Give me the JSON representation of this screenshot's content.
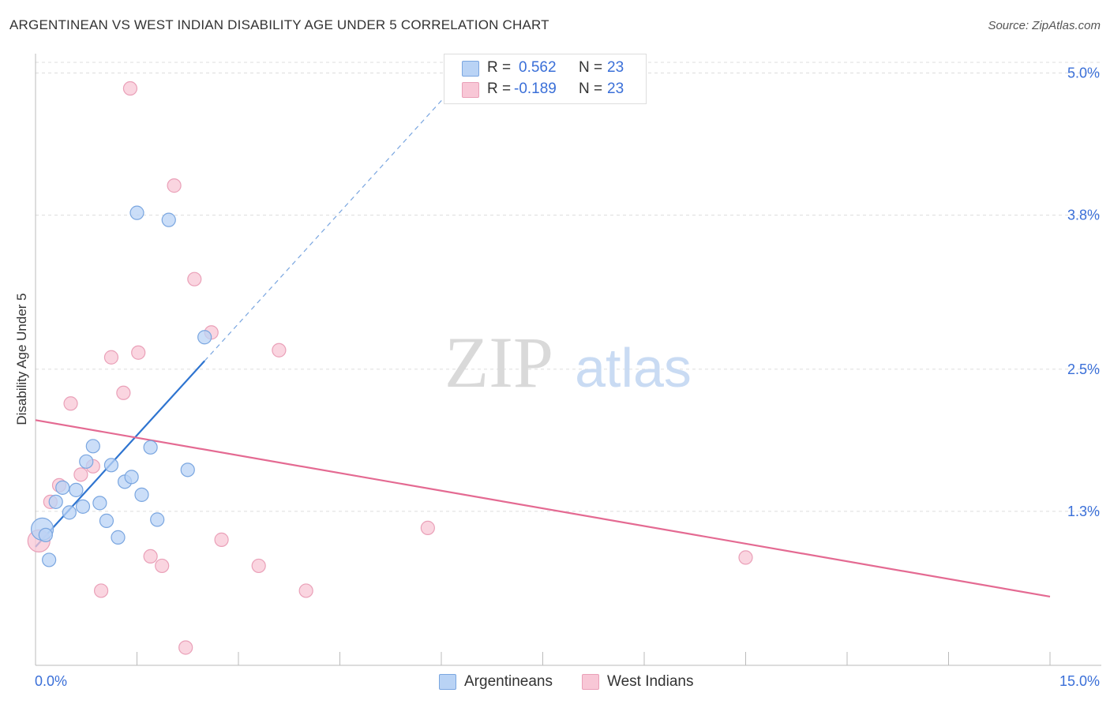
{
  "title": "ARGENTINEAN VS WEST INDIAN DISABILITY AGE UNDER 5 CORRELATION CHART",
  "source": "Source: ZipAtlas.com",
  "watermark": {
    "zip": "ZIP",
    "atlas": "atlas"
  },
  "colors": {
    "blue_fill": "#b9d3f5",
    "blue_stroke": "#7aa6e0",
    "blue_line": "#2e74d0",
    "pink_fill": "#f8c7d6",
    "pink_stroke": "#eaa0b8",
    "pink_line": "#e46a92",
    "value_text": "#3a6fd8",
    "grid": "#dddddd"
  },
  "legend": {
    "rows": [
      {
        "r_label": "R =",
        "r_value": "0.562",
        "n_label": "N =",
        "n_value": "23"
      },
      {
        "r_label": "R =",
        "r_value": "-0.189",
        "n_label": "N =",
        "n_value": "23"
      }
    ]
  },
  "bottom_legend": [
    "Argentineans",
    "West Indians"
  ],
  "chart_data": {
    "type": "scatter",
    "title": "ARGENTINEAN VS WEST INDIAN DISABILITY AGE UNDER 5 CORRELATION CHART",
    "xlabel": "",
    "ylabel": "Disability Age Under 5",
    "xlim": [
      0,
      15
    ],
    "ylim": [
      0,
      5.15
    ],
    "x_tick_labels": [
      "0.0%",
      "15.0%"
    ],
    "y_ticks": [
      1.3,
      2.5,
      3.8,
      5.0
    ],
    "y_tick_labels": [
      "1.3%",
      "2.5%",
      "3.8%",
      "5.0%"
    ],
    "grid": "horizontal dashed",
    "series": [
      {
        "name": "Argentineans",
        "r": 0.562,
        "n": 23,
        "points": [
          {
            "x": 0.1,
            "y": 1.15,
            "size": "large"
          },
          {
            "x": 0.2,
            "y": 0.89
          },
          {
            "x": 0.3,
            "y": 1.38
          },
          {
            "x": 0.4,
            "y": 1.5
          },
          {
            "x": 0.5,
            "y": 1.29
          },
          {
            "x": 0.6,
            "y": 1.48
          },
          {
            "x": 0.7,
            "y": 1.34
          },
          {
            "x": 0.75,
            "y": 1.72
          },
          {
            "x": 0.85,
            "y": 1.85
          },
          {
            "x": 0.95,
            "y": 1.37
          },
          {
            "x": 1.05,
            "y": 1.22
          },
          {
            "x": 1.12,
            "y": 1.69
          },
          {
            "x": 1.22,
            "y": 1.08
          },
          {
            "x": 1.32,
            "y": 1.55
          },
          {
            "x": 1.42,
            "y": 1.59
          },
          {
            "x": 1.5,
            "y": 3.82
          },
          {
            "x": 1.57,
            "y": 1.44
          },
          {
            "x": 1.7,
            "y": 1.84
          },
          {
            "x": 1.8,
            "y": 1.23
          },
          {
            "x": 1.97,
            "y": 3.76
          },
          {
            "x": 2.25,
            "y": 1.65
          },
          {
            "x": 2.5,
            "y": 2.77
          },
          {
            "x": 0.15,
            "y": 1.1
          }
        ],
        "trend": {
          "x0": 0.0,
          "y0": 1.0,
          "x1": 2.5,
          "y1": 2.57,
          "x_ext": 6.5,
          "y_ext": 5.08
        }
      },
      {
        "name": "West Indians",
        "r": -0.189,
        "n": 23,
        "points": [
          {
            "x": 0.05,
            "y": 1.05,
            "size": "large"
          },
          {
            "x": 0.22,
            "y": 1.38
          },
          {
            "x": 0.35,
            "y": 1.52
          },
          {
            "x": 0.52,
            "y": 2.21
          },
          {
            "x": 0.67,
            "y": 1.61
          },
          {
            "x": 0.85,
            "y": 1.68
          },
          {
            "x": 0.97,
            "y": 0.63
          },
          {
            "x": 1.12,
            "y": 2.6
          },
          {
            "x": 1.3,
            "y": 2.3
          },
          {
            "x": 1.4,
            "y": 4.87
          },
          {
            "x": 1.52,
            "y": 2.64
          },
          {
            "x": 1.7,
            "y": 0.92
          },
          {
            "x": 1.87,
            "y": 0.84
          },
          {
            "x": 2.05,
            "y": 4.05
          },
          {
            "x": 2.22,
            "y": 0.15
          },
          {
            "x": 2.35,
            "y": 3.26
          },
          {
            "x": 2.6,
            "y": 2.81
          },
          {
            "x": 2.75,
            "y": 1.06
          },
          {
            "x": 3.3,
            "y": 0.84
          },
          {
            "x": 3.6,
            "y": 2.66
          },
          {
            "x": 4.0,
            "y": 0.63
          },
          {
            "x": 5.8,
            "y": 1.16
          },
          {
            "x": 10.5,
            "y": 0.91
          }
        ],
        "trend": {
          "x0": 0.0,
          "y0": 2.07,
          "x1": 15.0,
          "y1": 0.58
        }
      }
    ]
  }
}
